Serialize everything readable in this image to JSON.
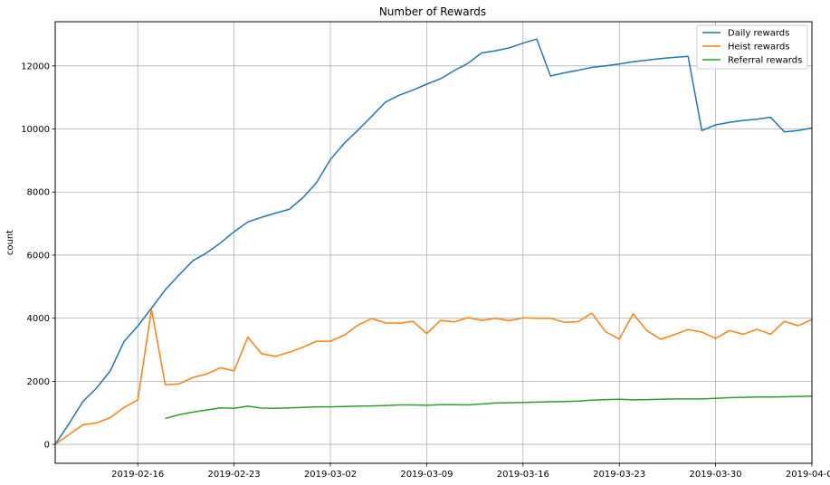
{
  "chart_data": {
    "type": "line",
    "title": "Number of Rewards",
    "xlabel": "",
    "ylabel": "count",
    "x_start": "2019-02-10",
    "xlim": [
      "2019-02-10",
      "2019-04-06"
    ],
    "ylim": [
      -600,
      13400
    ],
    "x_ticks": [
      "2019-02-16",
      "2019-02-23",
      "2019-03-02",
      "2019-03-09",
      "2019-03-16",
      "2019-03-23",
      "2019-03-30",
      "2019-04-06"
    ],
    "y_ticks": [
      0,
      2000,
      4000,
      6000,
      8000,
      10000,
      12000
    ],
    "grid": true,
    "legend_position": "top-right",
    "series": [
      {
        "name": "Daily rewards",
        "color": "#1f77b4",
        "x": [
          "2019-02-10",
          "2019-02-11",
          "2019-02-12",
          "2019-02-13",
          "2019-02-14",
          "2019-02-15",
          "2019-02-16",
          "2019-02-17",
          "2019-02-18",
          "2019-02-19",
          "2019-02-20",
          "2019-02-21",
          "2019-02-22",
          "2019-02-23",
          "2019-02-24",
          "2019-02-25",
          "2019-02-26",
          "2019-02-27",
          "2019-02-28",
          "2019-03-01",
          "2019-03-02",
          "2019-03-03",
          "2019-03-04",
          "2019-03-05",
          "2019-03-06",
          "2019-03-07",
          "2019-03-08",
          "2019-03-09",
          "2019-03-10",
          "2019-03-11",
          "2019-03-12",
          "2019-03-13",
          "2019-03-14",
          "2019-03-15",
          "2019-03-16",
          "2019-03-17",
          "2019-03-18",
          "2019-03-19",
          "2019-03-20",
          "2019-03-21",
          "2019-03-22",
          "2019-03-23",
          "2019-03-24",
          "2019-03-25",
          "2019-03-26",
          "2019-03-27",
          "2019-03-28",
          "2019-03-29",
          "2019-03-30",
          "2019-03-31",
          "2019-04-01",
          "2019-04-02",
          "2019-04-03",
          "2019-04-04",
          "2019-04-05",
          "2019-04-06"
        ],
        "y": [
          0,
          650,
          1350,
          1780,
          2330,
          3260,
          3750,
          4320,
          4900,
          5370,
          5820,
          6070,
          6380,
          6740,
          7050,
          7200,
          7330,
          7450,
          7820,
          8300,
          9030,
          9540,
          9960,
          10400,
          10850,
          11070,
          11230,
          11420,
          11590,
          11850,
          12080,
          12410,
          12480,
          12570,
          12720,
          12850,
          11680,
          11780,
          11860,
          11950,
          12000,
          12060,
          12130,
          12180,
          12230,
          12270,
          12300,
          9950,
          10130,
          10210,
          10270,
          10310,
          10370,
          9910,
          9950,
          10030
        ]
      },
      {
        "name": "Heist rewards",
        "color": "#ff7f0e",
        "x": [
          "2019-02-10",
          "2019-02-11",
          "2019-02-12",
          "2019-02-13",
          "2019-02-14",
          "2019-02-15",
          "2019-02-16",
          "2019-02-17",
          "2019-02-18",
          "2019-02-19",
          "2019-02-20",
          "2019-02-21",
          "2019-02-22",
          "2019-02-23",
          "2019-02-24",
          "2019-02-25",
          "2019-02-26",
          "2019-02-27",
          "2019-02-28",
          "2019-03-01",
          "2019-03-02",
          "2019-03-03",
          "2019-03-04",
          "2019-03-05",
          "2019-03-06",
          "2019-03-07",
          "2019-03-08",
          "2019-03-09",
          "2019-03-10",
          "2019-03-11",
          "2019-03-12",
          "2019-03-13",
          "2019-03-14",
          "2019-03-15",
          "2019-03-16",
          "2019-03-17",
          "2019-03-18",
          "2019-03-19",
          "2019-03-20",
          "2019-03-21",
          "2019-03-22",
          "2019-03-23",
          "2019-03-24",
          "2019-03-25",
          "2019-03-26",
          "2019-03-27",
          "2019-03-28",
          "2019-03-29",
          "2019-03-30",
          "2019-03-31",
          "2019-04-01",
          "2019-04-02",
          "2019-04-03",
          "2019-04-04",
          "2019-04-05",
          "2019-04-06"
        ],
        "y": [
          0,
          310,
          620,
          680,
          850,
          1170,
          1410,
          4280,
          1890,
          1920,
          2120,
          2230,
          2430,
          2330,
          3400,
          2870,
          2790,
          2920,
          3080,
          3270,
          3270,
          3460,
          3780,
          3990,
          3850,
          3840,
          3900,
          3510,
          3930,
          3880,
          4020,
          3930,
          4000,
          3920,
          4010,
          4000,
          4000,
          3870,
          3890,
          4160,
          3570,
          3340,
          4140,
          3610,
          3330,
          3480,
          3640,
          3560,
          3360,
          3610,
          3490,
          3650,
          3490,
          3900,
          3760,
          3960
        ]
      },
      {
        "name": "Referral rewards",
        "color": "#2ca02c",
        "x": [
          "2019-02-18",
          "2019-02-19",
          "2019-02-20",
          "2019-02-21",
          "2019-02-22",
          "2019-02-23",
          "2019-02-24",
          "2019-02-25",
          "2019-02-26",
          "2019-02-27",
          "2019-02-28",
          "2019-03-01",
          "2019-03-02",
          "2019-03-03",
          "2019-03-04",
          "2019-03-05",
          "2019-03-06",
          "2019-03-07",
          "2019-03-08",
          "2019-03-09",
          "2019-03-10",
          "2019-03-11",
          "2019-03-12",
          "2019-03-13",
          "2019-03-14",
          "2019-03-15",
          "2019-03-16",
          "2019-03-17",
          "2019-03-18",
          "2019-03-19",
          "2019-03-20",
          "2019-03-21",
          "2019-03-22",
          "2019-03-23",
          "2019-03-24",
          "2019-03-25",
          "2019-03-26",
          "2019-03-27",
          "2019-03-28",
          "2019-03-29",
          "2019-03-30",
          "2019-03-31",
          "2019-04-01",
          "2019-04-02",
          "2019-04-03",
          "2019-04-04",
          "2019-04-05",
          "2019-04-06"
        ],
        "y": [
          820,
          940,
          1020,
          1090,
          1160,
          1140,
          1210,
          1150,
          1140,
          1160,
          1170,
          1190,
          1190,
          1200,
          1210,
          1220,
          1230,
          1250,
          1250,
          1240,
          1260,
          1260,
          1250,
          1280,
          1310,
          1320,
          1330,
          1340,
          1350,
          1360,
          1370,
          1400,
          1420,
          1430,
          1410,
          1420,
          1430,
          1440,
          1440,
          1440,
          1460,
          1480,
          1490,
          1500,
          1500,
          1510,
          1520,
          1530
        ]
      }
    ]
  }
}
